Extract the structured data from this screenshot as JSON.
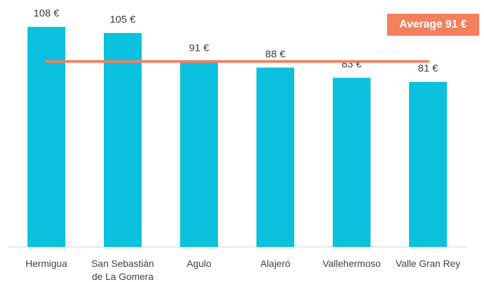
{
  "chart_data": {
    "type": "bar",
    "categories": [
      "Hermigua",
      "San Sebastián de La Gomera",
      "Agulo",
      "Alajeró",
      "Vallehermoso",
      "Valle Gran Rey"
    ],
    "values": [
      108,
      105,
      91,
      88,
      83,
      81
    ],
    "value_labels": [
      "108 €",
      "105 €",
      "91 €",
      "88 €",
      "83 €",
      "81 €"
    ],
    "color": "#0bc1dd",
    "ylim": [
      0,
      120
    ],
    "average": 91,
    "average_label": "Average 91 €",
    "average_color": "#f4805e"
  }
}
